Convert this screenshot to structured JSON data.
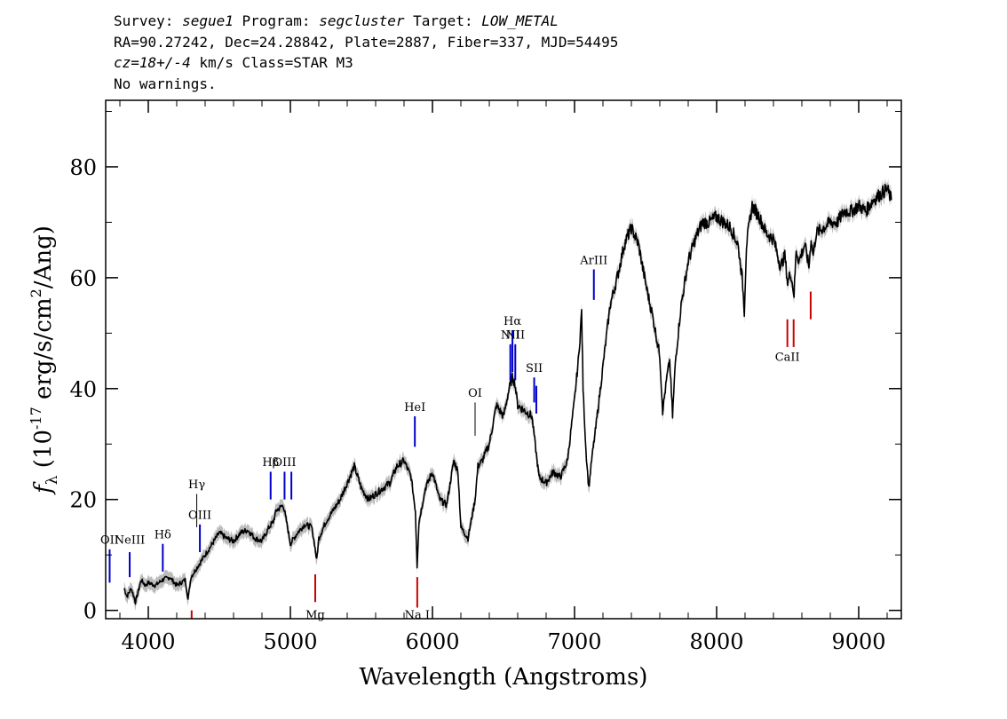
{
  "header": {
    "l1_a": "Survey: ",
    "survey": "segue1",
    "l1_b": " Program: ",
    "program": "segcluster",
    "l1_c": " Target: ",
    "target": "LOW_METAL",
    "line2": "RA=90.27242, Dec=24.28842, Plate=2887, Fiber=337, MJD=54495",
    "cz": "cz=18+/-4",
    "l3_b": " km/s Class=STAR M3",
    "line4": "No warnings."
  },
  "chart_data": {
    "type": "line",
    "xlabel": "Wavelength (Angstroms)",
    "ylabel_prefix": "f",
    "ylabel_sub": "λ",
    "ylabel_a": " (10",
    "ylabel_exp": "-17",
    "ylabel_b": " erg/s/cm",
    "ylabel_exp2": "2",
    "ylabel_c": "/Ang)",
    "xlim": [
      3700,
      9300
    ],
    "ylim": [
      -1.5,
      92
    ],
    "xticks": [
      4000,
      5000,
      6000,
      7000,
      8000,
      9000
    ],
    "xtick_labels": [
      "4000",
      "5000",
      "6000",
      "7000",
      "8000",
      "9000"
    ],
    "yticks": [
      0,
      20,
      40,
      60,
      80
    ],
    "ytick_labels": [
      "0",
      "20",
      "40",
      "60",
      "80"
    ],
    "series": [
      {
        "color": "#000000",
        "error_color": "#bbbbbb",
        "x": [
          3830,
          3850,
          3880,
          3910,
          3950,
          3980,
          4000,
          4050,
          4100,
          4150,
          4200,
          4260,
          4280,
          4300,
          4350,
          4400,
          4450,
          4500,
          4550,
          4600,
          4650,
          4700,
          4750,
          4800,
          4850,
          4880,
          4900,
          4950,
          4980,
          5000,
          5050,
          5100,
          5150,
          5170,
          5185,
          5200,
          5250,
          5300,
          5350,
          5400,
          5450,
          5500,
          5550,
          5600,
          5650,
          5700,
          5750,
          5800,
          5850,
          5880,
          5892,
          5905,
          5950,
          6000,
          6050,
          6100,
          6150,
          6180,
          6200,
          6250,
          6300,
          6320,
          6350,
          6400,
          6450,
          6500,
          6540,
          6562,
          6580,
          6600,
          6650,
          6700,
          6750,
          6800,
          6850,
          6900,
          6950,
          7000,
          7030,
          7050,
          7060,
          7080,
          7100,
          7120,
          7150,
          7200,
          7250,
          7300,
          7350,
          7400,
          7450,
          7500,
          7550,
          7600,
          7620,
          7650,
          7670,
          7690,
          7710,
          7750,
          7800,
          7850,
          7900,
          7950,
          8000,
          8050,
          8100,
          8150,
          8180,
          8195,
          8210,
          8250,
          8300,
          8350,
          8400,
          8450,
          8480,
          8500,
          8520,
          8545,
          8560,
          8580,
          8620,
          8650,
          8665,
          8680,
          8700,
          8750,
          8800,
          8850,
          8900,
          8950,
          9000,
          9050,
          9100,
          9150,
          9200,
          9230
        ],
        "y": [
          4,
          2.5,
          4,
          1.5,
          5.5,
          4.5,
          5,
          4.5,
          5.5,
          6,
          4.5,
          5.5,
          2,
          6,
          8,
          10,
          12,
          14,
          13,
          12.5,
          14,
          14.5,
          13,
          12.5,
          15,
          16,
          18,
          19,
          15,
          12,
          14,
          15.5,
          15,
          12,
          9,
          13,
          16,
          18,
          20,
          23,
          26,
          22,
          20,
          21,
          22,
          23,
          26,
          27,
          24,
          18,
          8,
          16,
          22,
          25,
          20,
          19,
          27,
          25,
          15,
          13,
          20,
          26,
          27,
          30,
          37,
          35,
          40,
          42,
          41,
          37,
          36,
          35,
          24,
          23,
          25,
          24,
          27,
          38,
          46,
          54,
          40,
          29,
          22,
          27,
          33,
          44,
          55,
          60,
          66,
          69,
          66,
          59,
          53,
          46,
          36,
          42,
          45,
          35,
          45,
          55,
          63,
          67,
          70,
          70,
          71,
          70,
          69,
          66,
          60,
          54,
          66,
          73,
          71,
          68,
          67,
          62,
          64,
          59,
          61,
          57,
          65,
          63,
          66,
          62,
          67,
          64,
          68,
          69,
          70,
          70,
          72,
          72,
          73,
          72,
          74,
          75,
          76,
          74
        ],
        "err": 1.2
      }
    ],
    "annotations": [
      {
        "label": "OII",
        "x": 3728,
        "color": "#0000cc",
        "y0": 5,
        "y1": 11,
        "lbl_y": 12
      },
      {
        "label": "NeIII",
        "x": 3869,
        "color": "#0000cc",
        "y0": 6,
        "y1": 10.5,
        "lbl_y": 12
      },
      {
        "label": "Hδ",
        "x": 4102,
        "color": "#0000cc",
        "y0": 7,
        "y1": 12,
        "lbl_y": 13
      },
      {
        "label": "Hγ",
        "x": 4341,
        "color": "#000000",
        "y0": 15,
        "y1": 21,
        "lbl_y": 22
      },
      {
        "label": "OIII",
        "x": 4363,
        "color": "#0000cc",
        "y0": 10.5,
        "y1": 15.5,
        "lbl_y": 16.5
      },
      {
        "label": "Hβ",
        "x": 4861,
        "color": "#0000cc",
        "y0": 20,
        "y1": 25,
        "lbl_y": 26
      },
      {
        "label": "OIII",
        "x": 4959,
        "color": "#0000cc",
        "y0": 20,
        "y1": 25,
        "lbl_y": 26
      },
      {
        "label": "",
        "x": 5007,
        "color": "#0000cc",
        "y0": 20,
        "y1": 25,
        "lbl_y": 0
      },
      {
        "label": "Mg",
        "x": 5175,
        "color": "#cc0000",
        "y0": 1.5,
        "y1": 6.5,
        "lbl_y": -1.5
      },
      {
        "label": "HeI",
        "x": 5876,
        "color": "#0000cc",
        "y0": 29.5,
        "y1": 35,
        "lbl_y": 36
      },
      {
        "label": "Na I",
        "x": 5893,
        "color": "#cc0000",
        "y0": 0.5,
        "y1": 6,
        "lbl_y": -2
      },
      {
        "label": "OI",
        "x": 6300,
        "color": "#000000",
        "y0": 31.5,
        "y1": 37.5,
        "lbl_y": 38.5
      },
      {
        "label": "NII",
        "x": 6548,
        "color": "#0000cc",
        "y0": 41.5,
        "y1": 48,
        "lbl_y": 49
      },
      {
        "label": "Hα",
        "x": 6563,
        "color": "#0000cc",
        "y0": 43,
        "y1": 50.5,
        "lbl_y": 51.5
      },
      {
        "label": "NII",
        "x": 6583,
        "color": "#0000cc",
        "y0": 41.5,
        "y1": 48,
        "lbl_y": 49
      },
      {
        "label": "SII",
        "x": 6716,
        "color": "#0000cc",
        "y0": 37.5,
        "y1": 42,
        "lbl_y": 43
      },
      {
        "label": "",
        "x": 6731,
        "color": "#0000cc",
        "y0": 35.5,
        "y1": 40.5,
        "lbl_y": 0
      },
      {
        "label": "ArIII",
        "x": 7136,
        "color": "#0000cc",
        "y0": 56,
        "y1": 61.5,
        "lbl_y": 62.5
      },
      {
        "label": "CaII",
        "x": 8498,
        "color": "#cc0000",
        "y0": 47.5,
        "y1": 52.5,
        "lbl_y": 45
      },
      {
        "label": "",
        "x": 8542,
        "color": "#cc0000",
        "y0": 47.5,
        "y1": 52.5,
        "lbl_y": 0
      },
      {
        "label": "",
        "x": 8662,
        "color": "#cc0000",
        "y0": 52.5,
        "y1": 57.5,
        "lbl_y": 0
      },
      {
        "label": "",
        "x": 4305,
        "color": "#cc0000",
        "y0": -2,
        "y1": 0,
        "lbl_y": 0
      }
    ]
  }
}
